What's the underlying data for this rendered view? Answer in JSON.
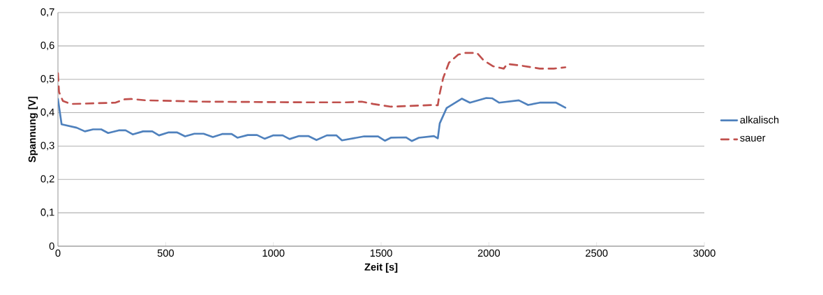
{
  "chart_data": {
    "type": "line",
    "xlabel": "Zeit [s]",
    "ylabel": "Spannung [V]",
    "xlim": [
      0,
      3000
    ],
    "xticks": [
      0,
      500,
      1000,
      1500,
      2000,
      2500,
      3000
    ],
    "ylim": [
      0,
      0.7
    ],
    "yticks": [
      {
        "value": 0,
        "label": "0"
      },
      {
        "value": 0.1,
        "label": "0,1"
      },
      {
        "value": 0.2,
        "label": "0,2"
      },
      {
        "value": 0.3,
        "label": "0,3"
      },
      {
        "value": 0.4,
        "label": "0,4"
      },
      {
        "value": 0.5,
        "label": "0,5"
      },
      {
        "value": 0.6,
        "label": "0,6"
      },
      {
        "value": 0.7,
        "label": "0,7"
      }
    ],
    "grid": "y",
    "legend": "right",
    "series": [
      {
        "name": "alkalisch",
        "color": "#4f81bd",
        "line_style": "solid",
        "x": [
          0,
          17,
          87,
          125,
          163,
          201,
          233,
          282,
          314,
          347,
          395,
          438,
          469,
          514,
          552,
          590,
          633,
          676,
          719,
          762,
          806,
          833,
          881,
          924,
          959,
          1000,
          1043,
          1075,
          1119,
          1162,
          1200,
          1248,
          1292,
          1318,
          1421,
          1486,
          1518,
          1545,
          1615,
          1642,
          1675,
          1745,
          1763,
          1772,
          1804,
          1875,
          1912,
          1988,
          2015,
          2047,
          2139,
          2182,
          2236,
          2312,
          2355
        ],
        "values": [
          0.441,
          0.365,
          0.355,
          0.344,
          0.35,
          0.35,
          0.339,
          0.347,
          0.347,
          0.335,
          0.344,
          0.344,
          0.332,
          0.341,
          0.341,
          0.329,
          0.337,
          0.337,
          0.327,
          0.336,
          0.336,
          0.325,
          0.333,
          0.333,
          0.322,
          0.332,
          0.332,
          0.321,
          0.33,
          0.33,
          0.318,
          0.332,
          0.332,
          0.317,
          0.329,
          0.329,
          0.316,
          0.325,
          0.326,
          0.315,
          0.325,
          0.33,
          0.323,
          0.368,
          0.414,
          0.442,
          0.43,
          0.444,
          0.443,
          0.43,
          0.437,
          0.423,
          0.43,
          0.43,
          0.415
        ]
      },
      {
        "name": "sauer",
        "color": "#c0504d",
        "line_style": "dashed",
        "x": [
          0,
          5,
          23,
          60,
          266,
          309,
          341,
          406,
          676,
          1162,
          1340,
          1410,
          1464,
          1545,
          1740,
          1763,
          1770,
          1788,
          1815,
          1858,
          1891,
          1945,
          1977,
          2020,
          2069,
          2085,
          2150,
          2236,
          2301,
          2355
        ],
        "values": [
          0.518,
          0.462,
          0.435,
          0.426,
          0.43,
          0.44,
          0.441,
          0.437,
          0.433,
          0.431,
          0.431,
          0.433,
          0.426,
          0.418,
          0.423,
          0.422,
          0.452,
          0.504,
          0.55,
          0.574,
          0.579,
          0.579,
          0.556,
          0.539,
          0.532,
          0.546,
          0.541,
          0.532,
          0.532,
          0.536
        ]
      }
    ]
  }
}
